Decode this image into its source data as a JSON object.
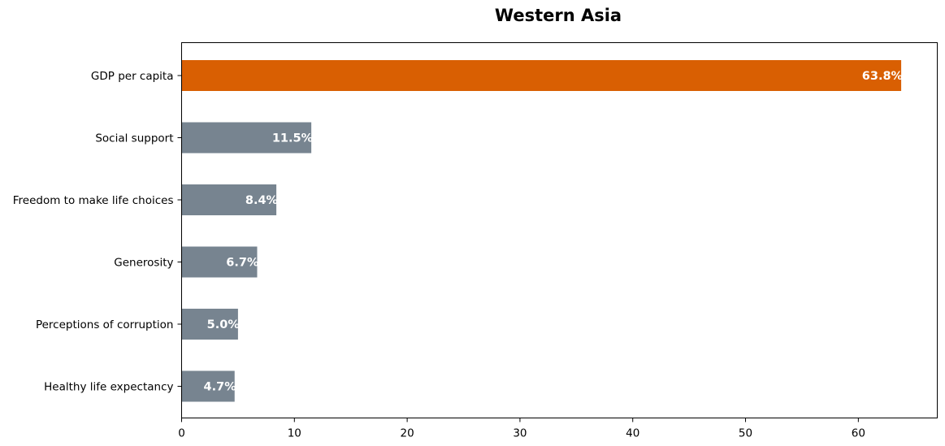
{
  "chart_data": {
    "type": "bar",
    "orientation": "horizontal",
    "title": "Western Asia",
    "xlabel": "",
    "ylabel": "",
    "categories": [
      "GDP per capita",
      "Social support",
      "Freedom to make life choices",
      "Generosity",
      "Perceptions of corruption",
      "Healthy life expectancy"
    ],
    "values": [
      63.8,
      11.5,
      8.4,
      6.7,
      5.0,
      4.7
    ],
    "value_labels": [
      "63.8%",
      "11.5%",
      "8.4%",
      "6.7%",
      "5.0%",
      "4.7%"
    ],
    "xlim": [
      0,
      67
    ],
    "xticks": [
      0,
      10,
      20,
      30,
      40,
      50,
      60
    ],
    "grid": false,
    "legend": "none",
    "colors": {
      "highlight": "#d95f02",
      "default": "#778490"
    },
    "highlight_index": 0
  }
}
